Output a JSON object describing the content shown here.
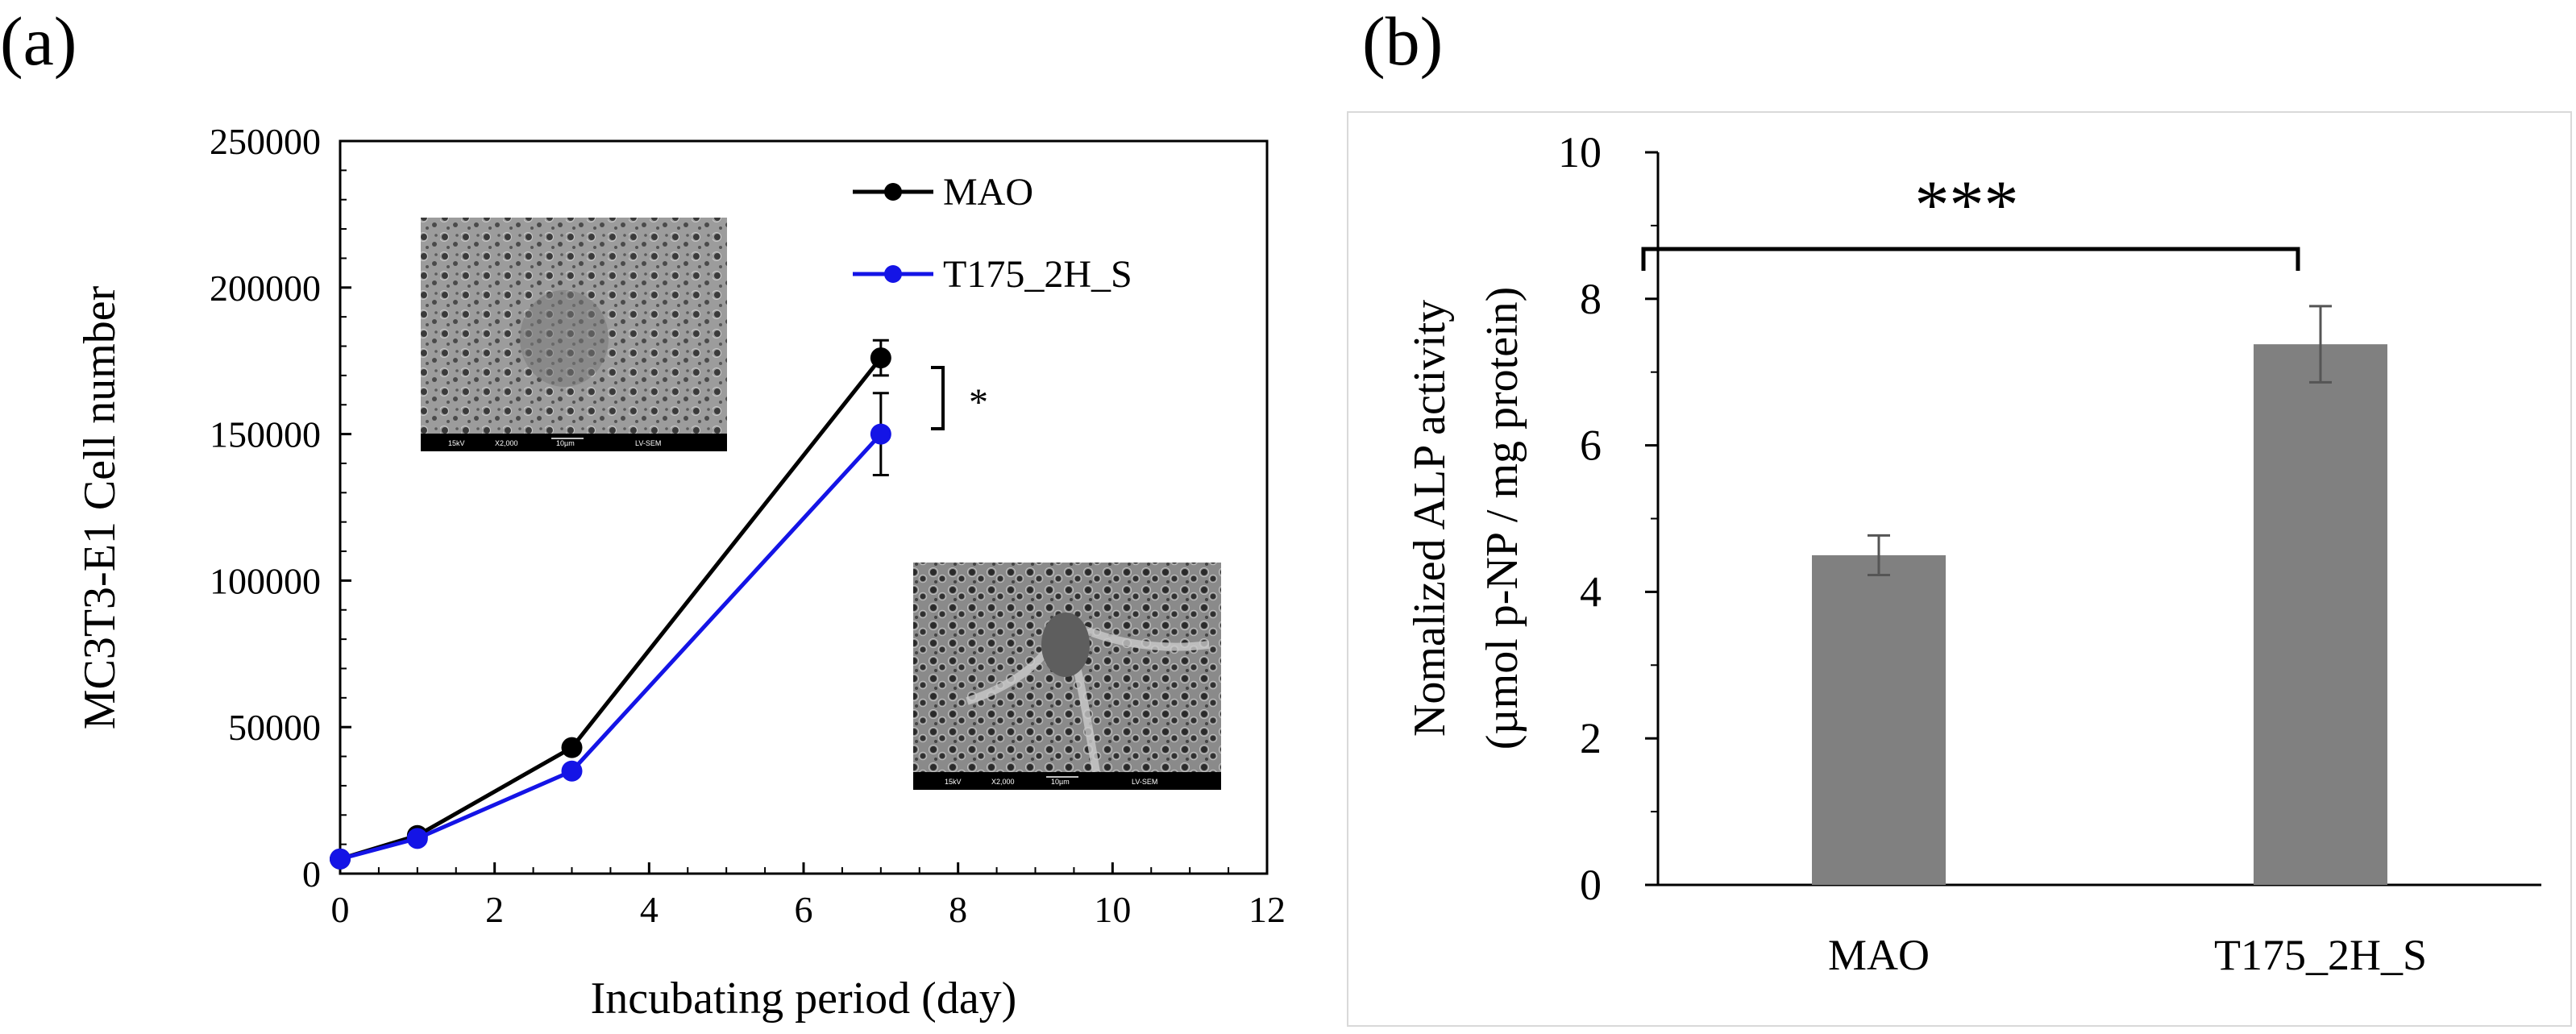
{
  "chart_data": [
    {
      "panel_label": "(a)",
      "type": "line",
      "xlabel": "Incubating period (day)",
      "ylabel": "MC3T3-E1  Cell number",
      "xlim": [
        0,
        12
      ],
      "ylim": [
        0,
        250000
      ],
      "xticks": [
        0,
        2,
        4,
        6,
        8,
        10,
        12
      ],
      "yticks": [
        0,
        50000,
        100000,
        150000,
        200000,
        250000
      ],
      "x": [
        0,
        1,
        3,
        7
      ],
      "series": [
        {
          "name": "MAO",
          "color": "#000000",
          "values": [
            5000,
            13000,
            43000,
            176000
          ],
          "error": [
            0,
            0,
            0,
            6000
          ]
        },
        {
          "name": "T175_2H_S",
          "color": "#1414e6",
          "values": [
            5000,
            12000,
            35000,
            150000
          ],
          "error": [
            0,
            0,
            0,
            14000
          ]
        }
      ],
      "legend_position": "top-right",
      "significance": "*",
      "insets": [
        {
          "caption": [
            "15kV",
            "X2,000",
            "10µm",
            "LV-SEM"
          ]
        },
        {
          "caption": [
            "15kV",
            "X2,000",
            "10µm",
            "LV-SEM"
          ]
        }
      ]
    },
    {
      "panel_label": "(b)",
      "type": "bar",
      "ylabel_line1": "Nomalized ALP activity",
      "ylabel_line2": "(µmol p-NP / mg protein)",
      "categories": [
        "MAO",
        "T175_2H_S"
      ],
      "values": [
        4.5,
        7.38
      ],
      "errors": [
        0.27,
        0.52
      ],
      "ylim": [
        0,
        10
      ],
      "yticks": [
        0,
        2,
        4,
        6,
        8,
        10
      ],
      "bar_color": "#808080",
      "significance": "***"
    }
  ]
}
